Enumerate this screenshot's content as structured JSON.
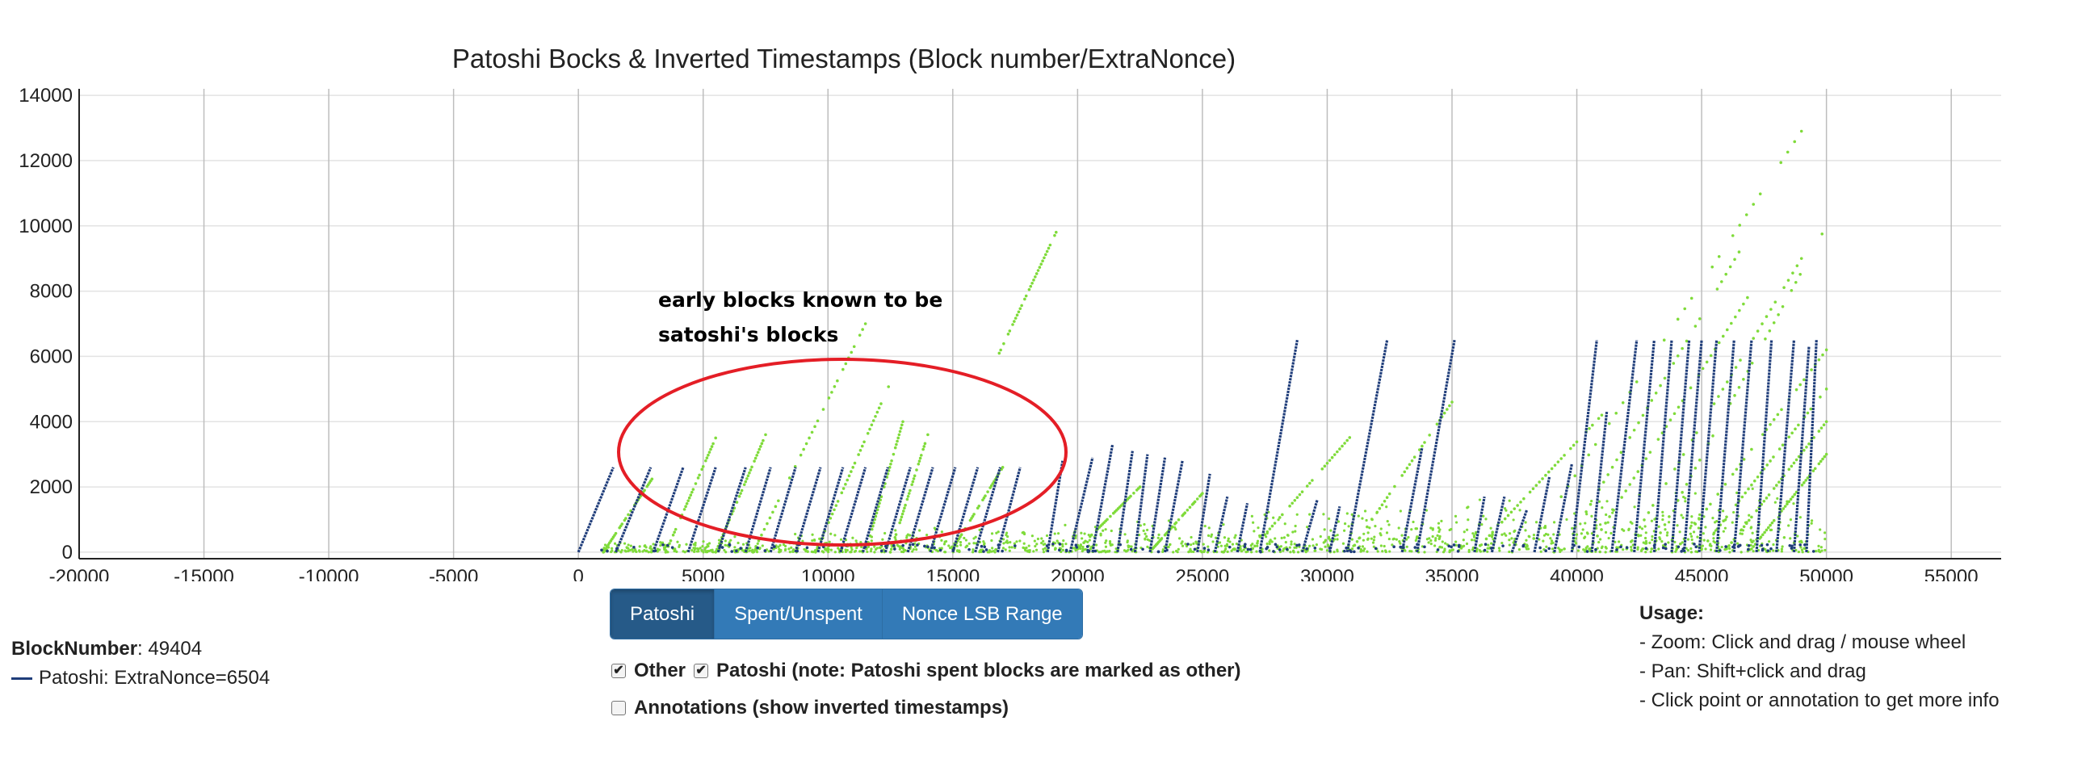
{
  "chart_data": {
    "type": "scatter",
    "title": "Patoshi Bocks & Inverted Timestamps (Block number/ExtraNonce)",
    "xlabel": "",
    "ylabel": "",
    "xlim": [
      -20000,
      57000
    ],
    "ylim": [
      -200,
      14200
    ],
    "x_ticks": [
      -20000,
      -15000,
      -10000,
      -5000,
      0,
      5000,
      10000,
      15000,
      20000,
      25000,
      30000,
      35000,
      40000,
      45000,
      50000,
      55000
    ],
    "y_ticks": [
      0,
      2000,
      4000,
      6000,
      8000,
      10000,
      12000,
      14000
    ],
    "grid": true,
    "series": [
      {
        "name": "Patoshi",
        "color": "#1f3d7a",
        "segments": [
          [
            0,
            0,
            1400,
            2600
          ],
          [
            1500,
            0,
            2900,
            2600
          ],
          [
            3000,
            0,
            4200,
            2600
          ],
          [
            4400,
            0,
            5500,
            2600
          ],
          [
            5600,
            0,
            6700,
            2600
          ],
          [
            6700,
            0,
            7700,
            2600
          ],
          [
            7700,
            0,
            8700,
            2600
          ],
          [
            8700,
            0,
            9700,
            2600
          ],
          [
            9600,
            0,
            10600,
            2600
          ],
          [
            10500,
            0,
            11500,
            2600
          ],
          [
            11400,
            0,
            12400,
            2600
          ],
          [
            12300,
            0,
            13300,
            2600
          ],
          [
            13200,
            0,
            14200,
            2600
          ],
          [
            14100,
            0,
            15100,
            2600
          ],
          [
            15000,
            0,
            16000,
            2600
          ],
          [
            15900,
            0,
            16900,
            2600
          ],
          [
            16800,
            0,
            17700,
            2600
          ],
          [
            18800,
            0,
            19400,
            2800
          ],
          [
            19700,
            0,
            20600,
            2900
          ],
          [
            20600,
            0,
            21400,
            3300
          ],
          [
            21600,
            0,
            22200,
            3100
          ],
          [
            22300,
            0,
            22800,
            3000
          ],
          [
            22900,
            0,
            23500,
            2900
          ],
          [
            23500,
            0,
            24200,
            2800
          ],
          [
            24800,
            0,
            25300,
            2400
          ],
          [
            25500,
            0,
            26000,
            1700
          ],
          [
            26400,
            0,
            26800,
            1500
          ],
          [
            27300,
            0,
            28800,
            6500
          ],
          [
            29000,
            0,
            29600,
            1600
          ],
          [
            30100,
            0,
            30500,
            1400
          ],
          [
            30800,
            0,
            32400,
            6500
          ],
          [
            33000,
            0,
            33800,
            3200
          ],
          [
            33600,
            0,
            35100,
            6500
          ],
          [
            35900,
            0,
            36300,
            1700
          ],
          [
            36600,
            0,
            37100,
            1700
          ],
          [
            37400,
            0,
            38000,
            1300
          ],
          [
            38300,
            0,
            38900,
            2300
          ],
          [
            39100,
            0,
            39800,
            2700
          ],
          [
            39800,
            0,
            40800,
            6500
          ],
          [
            40600,
            0,
            41200,
            4300
          ],
          [
            41400,
            0,
            42400,
            6500
          ],
          [
            42300,
            0,
            43100,
            6500
          ],
          [
            43100,
            0,
            43800,
            6500
          ],
          [
            43800,
            0,
            44500,
            6500
          ],
          [
            44300,
            0,
            45000,
            6500
          ],
          [
            44900,
            0,
            45600,
            6500
          ],
          [
            45600,
            0,
            46300,
            6500
          ],
          [
            46300,
            0,
            47000,
            6500
          ],
          [
            47200,
            0,
            47800,
            6500
          ],
          [
            48000,
            0,
            48700,
            6500
          ],
          [
            48700,
            0,
            49300,
            6300
          ],
          [
            49200,
            0,
            49600,
            6500
          ]
        ]
      },
      {
        "name": "Other",
        "color": "#7fdb3a",
        "segments": [
          [
            1000,
            0,
            3000,
            2300
          ],
          [
            3500,
            0,
            5500,
            3500
          ],
          [
            5500,
            0,
            7500,
            3600
          ],
          [
            7000,
            0,
            11500,
            7000
          ],
          [
            9500,
            0,
            12500,
            5200
          ],
          [
            11500,
            0,
            13000,
            4000
          ],
          [
            12500,
            0,
            14000,
            3600
          ],
          [
            15000,
            100,
            17000,
            2600
          ],
          [
            16800,
            6000,
            19200,
            9900
          ],
          [
            20000,
            100,
            22500,
            2000
          ],
          [
            23000,
            100,
            25000,
            1800
          ],
          [
            27000,
            100,
            31000,
            3600
          ],
          [
            31000,
            100,
            35000,
            4600
          ],
          [
            36000,
            100,
            41000,
            4200
          ],
          [
            38000,
            100,
            49000,
            12900
          ],
          [
            39500,
            100,
            46500,
            9200
          ],
          [
            40500,
            100,
            47000,
            8000
          ],
          [
            42000,
            100,
            49000,
            9000
          ],
          [
            43000,
            100,
            50000,
            10000
          ],
          [
            44000,
            100,
            50000,
            6200
          ],
          [
            45000,
            100,
            50000,
            5000
          ],
          [
            46000,
            100,
            50000,
            4000
          ],
          [
            47000,
            100,
            50000,
            3000
          ]
        ],
        "baseline_noise_range": [
          1000,
          50000
        ]
      }
    ],
    "annotation": {
      "text_line1": "early blocks known to be",
      "text_line2": "satoshi's blocks",
      "ellipse_color": "#e41e26"
    }
  },
  "controls": {
    "buttons": [
      "Patoshi",
      "Spent/Unspent",
      "Nonce LSB Range"
    ],
    "active_button": "Patoshi",
    "check_other": "Other",
    "check_patoshi": "Patoshi (note: Patoshi spent blocks are marked as other)",
    "check_annotations": "Annotations (show inverted timestamps)"
  },
  "info": {
    "block_label": "BlockNumber",
    "block_value": ": 49404",
    "series_text": "Patoshi: ExtraNonce=6504"
  },
  "usage": {
    "title": "Usage:",
    "line1": "- Zoom: Click and drag / mouse wheel",
    "line2": "- Pan: Shift+click and drag",
    "line3": "- Click point or annotation to get more info"
  }
}
